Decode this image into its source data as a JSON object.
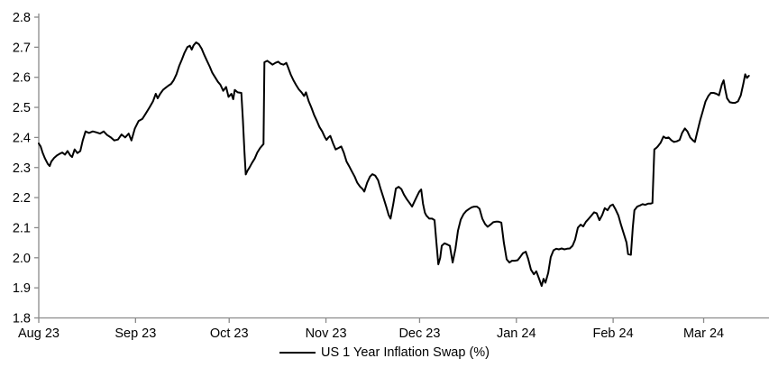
{
  "chart_data": {
    "type": "line",
    "title": "",
    "xlabel": "",
    "ylabel": "",
    "grid": false,
    "legend": {
      "label": "US 1 Year Inflation Swap (%)",
      "position": "bottom-center"
    },
    "colors": {
      "line": "#000000",
      "axis": "#8a8a8a",
      "tick_text": "#000000",
      "background": "#ffffff"
    },
    "ylim": [
      1.8,
      2.8
    ],
    "yticks": [
      1.8,
      1.9,
      2.0,
      2.1,
      2.2,
      2.3,
      2.4,
      2.5,
      2.6,
      2.7,
      2.8
    ],
    "xlim": [
      0,
      233.5
    ],
    "xticks": [
      {
        "d": 0,
        "label": "Aug 23"
      },
      {
        "d": 31,
        "label": "Sep 23"
      },
      {
        "d": 61,
        "label": "Oct 23"
      },
      {
        "d": 92,
        "label": "Nov 23"
      },
      {
        "d": 122,
        "label": "Dec 23"
      },
      {
        "d": 153,
        "label": "Jan 24"
      },
      {
        "d": 184,
        "label": "Feb 24"
      },
      {
        "d": 213,
        "label": "Mar 24"
      }
    ],
    "x_unit": "days since 2023-08-01",
    "series": [
      {
        "name": "US 1 Year Inflation Swap (%)",
        "points": [
          [
            0,
            2.38
          ],
          [
            0.6,
            2.37
          ],
          [
            1.2,
            2.35
          ],
          [
            2,
            2.33
          ],
          [
            2.9,
            2.312
          ],
          [
            3.5,
            2.305
          ],
          [
            4,
            2.32
          ],
          [
            4.9,
            2.332
          ],
          [
            5.8,
            2.34
          ],
          [
            6.6,
            2.345
          ],
          [
            7.5,
            2.35
          ],
          [
            8.4,
            2.343
          ],
          [
            9.2,
            2.355
          ],
          [
            10.1,
            2.34
          ],
          [
            10.7,
            2.335
          ],
          [
            11.5,
            2.36
          ],
          [
            12.4,
            2.348
          ],
          [
            13.3,
            2.355
          ],
          [
            14.1,
            2.39
          ],
          [
            15,
            2.42
          ],
          [
            16.1,
            2.415
          ],
          [
            17.3,
            2.42
          ],
          [
            18.4,
            2.417
          ],
          [
            19.6,
            2.413
          ],
          [
            20.8,
            2.42
          ],
          [
            21.9,
            2.408
          ],
          [
            23.1,
            2.4
          ],
          [
            24.2,
            2.39
          ],
          [
            25.4,
            2.393
          ],
          [
            26.5,
            2.41
          ],
          [
            27.7,
            2.4
          ],
          [
            28.8,
            2.413
          ],
          [
            29.7,
            2.39
          ],
          [
            30.8,
            2.43
          ],
          [
            32,
            2.455
          ],
          [
            33.2,
            2.462
          ],
          [
            34.3,
            2.48
          ],
          [
            35.5,
            2.5
          ],
          [
            36.6,
            2.52
          ],
          [
            37.5,
            2.545
          ],
          [
            38.1,
            2.53
          ],
          [
            38.9,
            2.545
          ],
          [
            39.8,
            2.558
          ],
          [
            40.6,
            2.565
          ],
          [
            41.5,
            2.572
          ],
          [
            42.4,
            2.578
          ],
          [
            43.2,
            2.59
          ],
          [
            44.1,
            2.61
          ],
          [
            45,
            2.638
          ],
          [
            45.8,
            2.658
          ],
          [
            46.7,
            2.682
          ],
          [
            47.6,
            2.7
          ],
          [
            48.4,
            2.705
          ],
          [
            49,
            2.692
          ],
          [
            49.6,
            2.706
          ],
          [
            50.4,
            2.716
          ],
          [
            51.3,
            2.71
          ],
          [
            52.2,
            2.695
          ],
          [
            53,
            2.675
          ],
          [
            53.9,
            2.655
          ],
          [
            54.8,
            2.635
          ],
          [
            55.6,
            2.615
          ],
          [
            56.5,
            2.6
          ],
          [
            57.4,
            2.585
          ],
          [
            58.2,
            2.575
          ],
          [
            59.1,
            2.555
          ],
          [
            60,
            2.568
          ],
          [
            60.8,
            2.535
          ],
          [
            61.7,
            2.545
          ],
          [
            62.3,
            2.527
          ],
          [
            62.8,
            2.558
          ],
          [
            63.7,
            2.55
          ],
          [
            64.9,
            2.548
          ],
          [
            65.4,
            2.46
          ],
          [
            65.9,
            2.35
          ],
          [
            66.3,
            2.277
          ],
          [
            66.9,
            2.29
          ],
          [
            67.5,
            2.3
          ],
          [
            68.3,
            2.315
          ],
          [
            69.2,
            2.33
          ],
          [
            70,
            2.35
          ],
          [
            70.9,
            2.365
          ],
          [
            72,
            2.378
          ],
          [
            72.3,
            2.65
          ],
          [
            73.2,
            2.655
          ],
          [
            74.1,
            2.648
          ],
          [
            74.9,
            2.642
          ],
          [
            75.8,
            2.648
          ],
          [
            76.7,
            2.652
          ],
          [
            77.5,
            2.645
          ],
          [
            78.4,
            2.642
          ],
          [
            79.3,
            2.648
          ],
          [
            79.8,
            2.635
          ],
          [
            80.7,
            2.61
          ],
          [
            81.6,
            2.59
          ],
          [
            82.4,
            2.575
          ],
          [
            83.3,
            2.56
          ],
          [
            84.2,
            2.55
          ],
          [
            85,
            2.538
          ],
          [
            85.6,
            2.55
          ],
          [
            86.5,
            2.52
          ],
          [
            87.3,
            2.5
          ],
          [
            88.2,
            2.475
          ],
          [
            89.1,
            2.455
          ],
          [
            89.9,
            2.435
          ],
          [
            90.8,
            2.42
          ],
          [
            91.7,
            2.4
          ],
          [
            92.2,
            2.392
          ],
          [
            92.8,
            2.4
          ],
          [
            93.4,
            2.405
          ],
          [
            94.3,
            2.38
          ],
          [
            95.1,
            2.36
          ],
          [
            96,
            2.365
          ],
          [
            96.9,
            2.37
          ],
          [
            97.7,
            2.35
          ],
          [
            98.6,
            2.32
          ],
          [
            99.4,
            2.305
          ],
          [
            100.3,
            2.287
          ],
          [
            101.2,
            2.27
          ],
          [
            102,
            2.25
          ],
          [
            102.9,
            2.237
          ],
          [
            103.8,
            2.228
          ],
          [
            104.3,
            2.22
          ],
          [
            105.2,
            2.25
          ],
          [
            106.1,
            2.27
          ],
          [
            106.9,
            2.278
          ],
          [
            107.8,
            2.273
          ],
          [
            108.7,
            2.258
          ],
          [
            109.5,
            2.23
          ],
          [
            110.4,
            2.2
          ],
          [
            111.3,
            2.17
          ],
          [
            112.1,
            2.142
          ],
          [
            112.7,
            2.13
          ],
          [
            113.6,
            2.18
          ],
          [
            114.4,
            2.23
          ],
          [
            115.3,
            2.236
          ],
          [
            116.2,
            2.228
          ],
          [
            117,
            2.21
          ],
          [
            117.9,
            2.195
          ],
          [
            118.8,
            2.182
          ],
          [
            119.6,
            2.17
          ],
          [
            120.5,
            2.19
          ],
          [
            121.4,
            2.21
          ],
          [
            121.9,
            2.22
          ],
          [
            122.5,
            2.227
          ],
          [
            123.1,
            2.18
          ],
          [
            123.7,
            2.15
          ],
          [
            124.2,
            2.14
          ],
          [
            125.1,
            2.13
          ],
          [
            126,
            2.13
          ],
          [
            126.8,
            2.125
          ],
          [
            127.4,
            2.05
          ],
          [
            128,
            1.978
          ],
          [
            128.6,
            2.0
          ],
          [
            129.1,
            2.04
          ],
          [
            130,
            2.048
          ],
          [
            130.9,
            2.044
          ],
          [
            131.7,
            2.04
          ],
          [
            132.6,
            1.984
          ],
          [
            133.5,
            2.03
          ],
          [
            134.3,
            2.09
          ],
          [
            135.2,
            2.127
          ],
          [
            136.1,
            2.145
          ],
          [
            136.9,
            2.155
          ],
          [
            137.8,
            2.162
          ],
          [
            138.7,
            2.168
          ],
          [
            139.5,
            2.17
          ],
          [
            140.4,
            2.17
          ],
          [
            141.2,
            2.163
          ],
          [
            142.1,
            2.13
          ],
          [
            143,
            2.112
          ],
          [
            143.8,
            2.103
          ],
          [
            144.7,
            2.11
          ],
          [
            145.6,
            2.118
          ],
          [
            146.4,
            2.12
          ],
          [
            147.3,
            2.12
          ],
          [
            148.2,
            2.117
          ],
          [
            149,
            2.05
          ],
          [
            149.9,
            1.995
          ],
          [
            150.8,
            1.984
          ],
          [
            151.6,
            1.99
          ],
          [
            152.5,
            1.99
          ],
          [
            153.4,
            1.992
          ],
          [
            154.2,
            2.002
          ],
          [
            155.1,
            2.015
          ],
          [
            156,
            2.02
          ],
          [
            156.8,
            1.996
          ],
          [
            157.7,
            1.96
          ],
          [
            158.6,
            1.945
          ],
          [
            159.4,
            1.955
          ],
          [
            160.3,
            1.93
          ],
          [
            161.1,
            1.906
          ],
          [
            161.7,
            1.93
          ],
          [
            162.3,
            1.917
          ],
          [
            163.2,
            1.95
          ],
          [
            164,
            2.002
          ],
          [
            164.9,
            2.025
          ],
          [
            165.8,
            2.03
          ],
          [
            166.6,
            2.028
          ],
          [
            167.5,
            2.031
          ],
          [
            168.4,
            2.028
          ],
          [
            169.2,
            2.03
          ],
          [
            170.1,
            2.031
          ],
          [
            171,
            2.04
          ],
          [
            171.8,
            2.06
          ],
          [
            172.7,
            2.1
          ],
          [
            173.6,
            2.11
          ],
          [
            174.4,
            2.104
          ],
          [
            175.3,
            2.12
          ],
          [
            176.2,
            2.13
          ],
          [
            177,
            2.14
          ],
          [
            177.9,
            2.151
          ],
          [
            178.7,
            2.148
          ],
          [
            179.6,
            2.125
          ],
          [
            180.5,
            2.142
          ],
          [
            181.3,
            2.165
          ],
          [
            182.2,
            2.158
          ],
          [
            183.1,
            2.173
          ],
          [
            183.9,
            2.177
          ],
          [
            184.8,
            2.16
          ],
          [
            185.7,
            2.14
          ],
          [
            186.5,
            2.11
          ],
          [
            187.4,
            2.08
          ],
          [
            188.3,
            2.05
          ],
          [
            188.8,
            2.012
          ],
          [
            189.7,
            2.01
          ],
          [
            190.3,
            2.1
          ],
          [
            190.8,
            2.158
          ],
          [
            191.7,
            2.17
          ],
          [
            192.6,
            2.174
          ],
          [
            193.4,
            2.178
          ],
          [
            194.3,
            2.176
          ],
          [
            195.2,
            2.18
          ],
          [
            196,
            2.18
          ],
          [
            196.6,
            2.182
          ],
          [
            197.2,
            2.36
          ],
          [
            197.8,
            2.365
          ],
          [
            198.3,
            2.37
          ],
          [
            199.2,
            2.382
          ],
          [
            200.1,
            2.403
          ],
          [
            200.9,
            2.398
          ],
          [
            201.8,
            2.4
          ],
          [
            202.7,
            2.39
          ],
          [
            203.5,
            2.385
          ],
          [
            204.4,
            2.387
          ],
          [
            205.3,
            2.392
          ],
          [
            206.1,
            2.415
          ],
          [
            207,
            2.43
          ],
          [
            207.8,
            2.42
          ],
          [
            208.7,
            2.4
          ],
          [
            209.6,
            2.39
          ],
          [
            210.2,
            2.385
          ],
          [
            211,
            2.42
          ],
          [
            211.9,
            2.458
          ],
          [
            212.8,
            2.49
          ],
          [
            213.6,
            2.52
          ],
          [
            214.5,
            2.538
          ],
          [
            215.3,
            2.548
          ],
          [
            216.2,
            2.548
          ],
          [
            217.1,
            2.545
          ],
          [
            217.9,
            2.54
          ],
          [
            218.8,
            2.575
          ],
          [
            219.4,
            2.59
          ],
          [
            219.9,
            2.56
          ],
          [
            220.5,
            2.53
          ],
          [
            221.4,
            2.517
          ],
          [
            222.3,
            2.515
          ],
          [
            223.1,
            2.515
          ],
          [
            224,
            2.52
          ],
          [
            224.9,
            2.54
          ],
          [
            225.7,
            2.578
          ],
          [
            226.3,
            2.61
          ],
          [
            226.9,
            2.598
          ],
          [
            227.5,
            2.605
          ]
        ]
      }
    ]
  }
}
